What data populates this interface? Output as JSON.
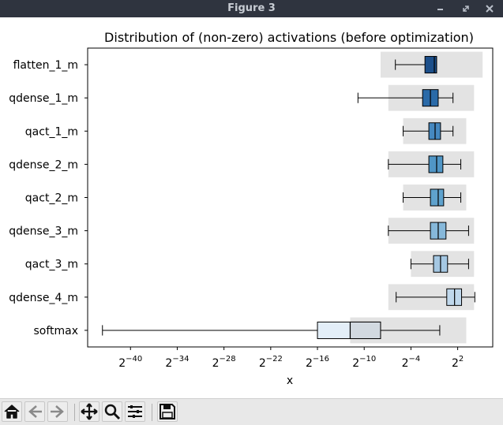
{
  "window": {
    "title": "Figure 3"
  },
  "toolbar": {
    "buttons": [
      {
        "name": "home-button",
        "icon": "home-icon"
      },
      {
        "name": "back-button",
        "icon": "arrow-left-icon"
      },
      {
        "name": "forward-button",
        "icon": "arrow-right-icon"
      },
      {
        "name": "pan-button",
        "icon": "move-icon"
      },
      {
        "name": "zoom-button",
        "icon": "magnifier-icon"
      },
      {
        "name": "subplots-button",
        "icon": "sliders-icon"
      },
      {
        "name": "save-button",
        "icon": "floppy-disk-icon"
      }
    ]
  },
  "chart_data": {
    "type": "boxplot-horizontal",
    "title": "Distribution of (non-zero) activations (before optimization)",
    "xlabel": "x",
    "ylabel": "",
    "x_scale": "log2",
    "x_ticks": [
      {
        "base": "2",
        "exp": "−40",
        "value": -40
      },
      {
        "base": "2",
        "exp": "−34",
        "value": -34
      },
      {
        "base": "2",
        "exp": "−28",
        "value": -28
      },
      {
        "base": "2",
        "exp": "−22",
        "value": -22
      },
      {
        "base": "2",
        "exp": "−16",
        "value": -16
      },
      {
        "base": "2",
        "exp": "−10",
        "value": -10
      },
      {
        "base": "2",
        "exp": "−4",
        "value": -4
      },
      {
        "base": "2",
        "exp": "2",
        "value": 2
      }
    ],
    "xlim_log2": [
      -45.5,
      6.5
    ],
    "categories": [
      "flatten_1_m",
      "qdense_1_m",
      "qact_1_m",
      "qdense_2_m",
      "qact_2_m",
      "qdense_3_m",
      "qact_3_m",
      "qdense_4_m",
      "softmax"
    ],
    "series": [
      {
        "label": "flatten_1_m",
        "whisker_low": -6.0,
        "q1": -2.2,
        "median": -1.0,
        "q3": -0.7,
        "whisker_high": -0.7,
        "range_band": [
          -7.9,
          5.2
        ],
        "color": "#1c4f8a"
      },
      {
        "label": "qdense_1_m",
        "whisker_low": -10.8,
        "q1": -2.5,
        "median": -1.5,
        "q3": -0.5,
        "whisker_high": 1.4,
        "range_band": [
          -6.9,
          4.1
        ],
        "color": "#2a6aa8"
      },
      {
        "label": "qact_1_m",
        "whisker_low": -5.0,
        "q1": -1.7,
        "median": -0.9,
        "q3": -0.2,
        "whisker_high": 1.4,
        "range_band": [
          -5.0,
          3.1
        ],
        "color": "#4588c0"
      },
      {
        "label": "qdense_2_m",
        "whisker_low": -6.9,
        "q1": -1.7,
        "median": -0.7,
        "q3": 0.1,
        "whisker_high": 2.4,
        "range_band": [
          -6.9,
          4.1
        ],
        "color": "#5096c6"
      },
      {
        "label": "qact_2_m",
        "whisker_low": -5.0,
        "q1": -1.5,
        "median": -0.5,
        "q3": 0.2,
        "whisker_high": 2.4,
        "range_band": [
          -5.0,
          3.1
        ],
        "color": "#5fa2cd"
      },
      {
        "label": "qdense_3_m",
        "whisker_low": -6.9,
        "q1": -1.5,
        "median": -0.5,
        "q3": 0.5,
        "whisker_high": 3.4,
        "range_band": [
          -6.9,
          4.1
        ],
        "color": "#86b8da"
      },
      {
        "label": "qact_3_m",
        "whisker_low": -4.0,
        "q1": -1.1,
        "median": -0.2,
        "q3": 0.7,
        "whisker_high": 3.4,
        "range_band": [
          -4.0,
          4.1
        ],
        "color": "#a5c8e3"
      },
      {
        "label": "qdense_4_m",
        "whisker_low": -5.9,
        "q1": 0.6,
        "median": 1.6,
        "q3": 2.5,
        "whisker_high": 4.2,
        "range_band": [
          -6.9,
          4.1
        ],
        "color": "#c0d8ec"
      },
      {
        "label": "softmax",
        "whisker_low": -43.6,
        "q1": -16.0,
        "median": -11.8,
        "q3": -7.9,
        "whisker_high": -0.3,
        "range_band": [
          -11.8,
          3.1
        ],
        "color": "#e3eef8"
      }
    ]
  }
}
